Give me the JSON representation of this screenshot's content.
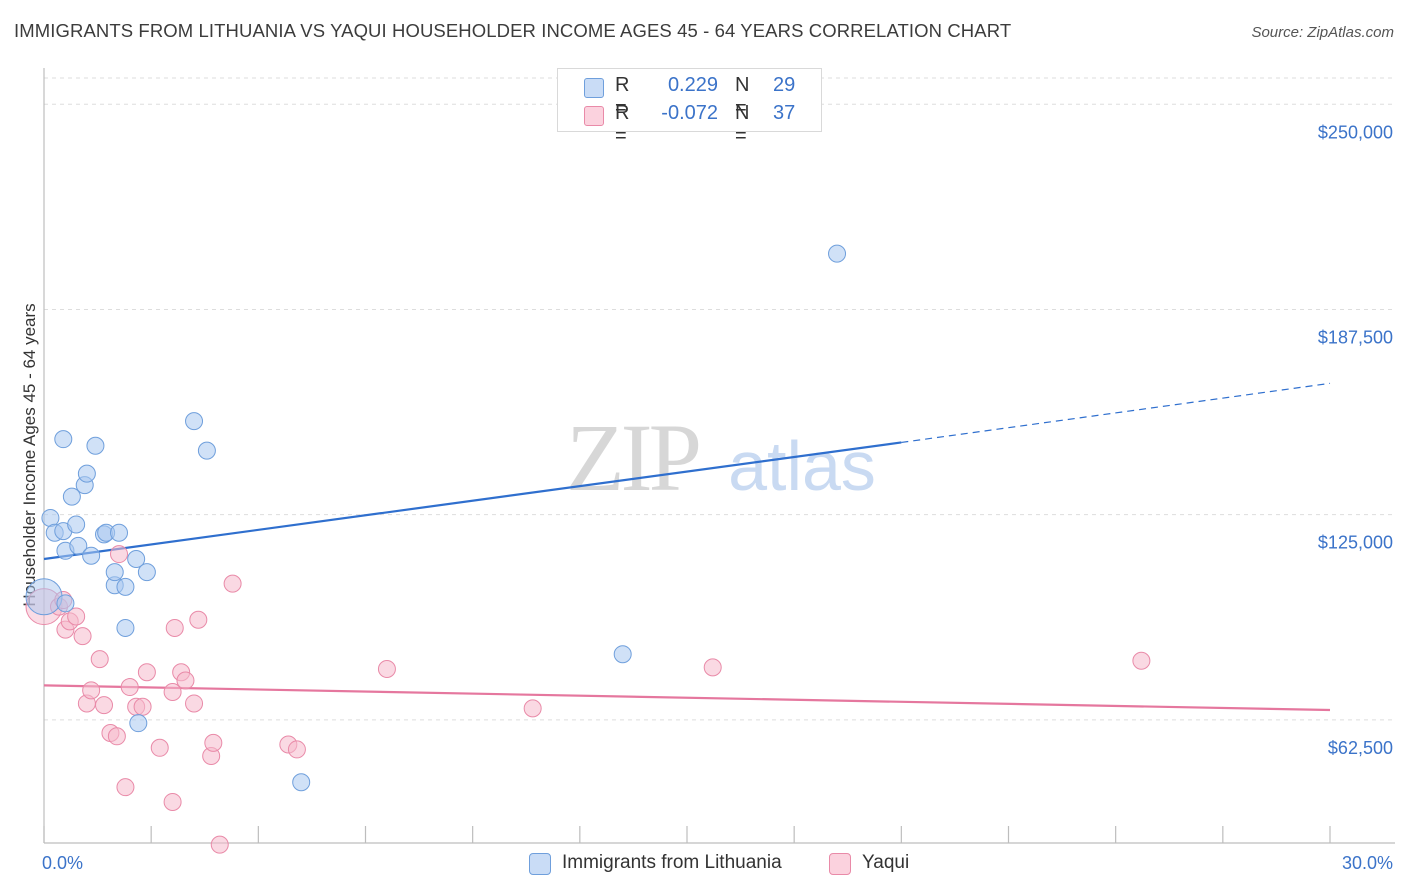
{
  "title": "IMMIGRANTS FROM LITHUANIA VS YAQUI HOUSEHOLDER INCOME AGES 45 - 64 YEARS CORRELATION CHART",
  "source": "Source: ZipAtlas.com",
  "watermark": {
    "zip": "ZIP",
    "atlas": "atlas"
  },
  "stats": {
    "r_label": "R =",
    "n_label": "N =",
    "rows": [
      {
        "series": "Immigrants from Lithuania",
        "r": "0.229",
        "n": "29",
        "color": "#a9c8f0"
      },
      {
        "series": "Yaqui",
        "r": "-0.072",
        "n": "37",
        "color": "#f5b9cc"
      }
    ]
  },
  "legend": [
    {
      "label": "Immigrants from Lithuania",
      "color": "#a9c8f0"
    },
    {
      "label": "Yaqui",
      "color": "#f5b9cc"
    }
  ],
  "colors": {
    "blue_fill": "#a9c8f0",
    "blue_stroke": "#6f9fdc",
    "blue_line": "#2f6fce",
    "pink_fill": "#f5b9cc",
    "pink_stroke": "#e98aa8",
    "pink_line": "#e5779e",
    "axis_label": "#3b73c9",
    "grid": "#dddddd"
  },
  "chart_data": {
    "type": "scatter",
    "title": "IMMIGRANTS FROM LITHUANIA VS YAQUI HOUSEHOLDER INCOME AGES 45 - 64 YEARS CORRELATION CHART",
    "xlabel": "",
    "ylabel": "Householder Income Ages 45 - 64 years",
    "xlim": [
      0,
      30
    ],
    "ylim": [
      25000,
      258000
    ],
    "x_tick_labels": [
      "0.0%",
      "30.0%"
    ],
    "y_ticks": [
      62500,
      125000,
      187500,
      250000
    ],
    "y_tick_labels": [
      "$62,500",
      "$125,000",
      "$187,500",
      "$250,000"
    ],
    "grid": true,
    "legend_position": "bottom",
    "series": [
      {
        "name": "Immigrants from Lithuania",
        "points": [
          [
            0.0,
            100000
          ],
          [
            0.15,
            124000
          ],
          [
            0.25,
            119500
          ],
          [
            0.45,
            120000
          ],
          [
            0.5,
            98000
          ],
          [
            0.45,
            148000
          ],
          [
            0.5,
            114000
          ],
          [
            0.65,
            130500
          ],
          [
            0.75,
            122000
          ],
          [
            0.8,
            115500
          ],
          [
            0.95,
            134000
          ],
          [
            1.0,
            137500
          ],
          [
            1.1,
            112500
          ],
          [
            1.2,
            146000
          ],
          [
            1.4,
            119000
          ],
          [
            1.45,
            119500
          ],
          [
            1.65,
            103500
          ],
          [
            1.65,
            107500
          ],
          [
            1.75,
            119500
          ],
          [
            1.9,
            103000
          ],
          [
            1.9,
            90500
          ],
          [
            2.15,
            111500
          ],
          [
            2.2,
            61500
          ],
          [
            2.4,
            107500
          ],
          [
            3.5,
            153500
          ],
          [
            3.8,
            144500
          ],
          [
            6.0,
            43500
          ],
          [
            13.5,
            82500
          ],
          [
            18.5,
            204500
          ]
        ],
        "trend": {
          "x_start": 0,
          "y_start": 111500,
          "x_solid_end": 20,
          "y_solid_end": 147000,
          "x_end": 30,
          "y_end": 165000
        }
      },
      {
        "name": "Yaqui",
        "points": [
          [
            0.0,
            97000
          ],
          [
            0.35,
            97000
          ],
          [
            0.45,
            99000
          ],
          [
            0.5,
            90000
          ],
          [
            0.6,
            92500
          ],
          [
            0.75,
            94000
          ],
          [
            0.9,
            88000
          ],
          [
            1.0,
            67500
          ],
          [
            1.1,
            71500
          ],
          [
            1.3,
            81000
          ],
          [
            1.4,
            67000
          ],
          [
            1.55,
            58500
          ],
          [
            1.7,
            57500
          ],
          [
            1.75,
            113000
          ],
          [
            1.9,
            42000
          ],
          [
            2.0,
            72500
          ],
          [
            2.15,
            66500
          ],
          [
            2.3,
            66500
          ],
          [
            2.4,
            77000
          ],
          [
            2.7,
            54000
          ],
          [
            3.0,
            71000
          ],
          [
            3.0,
            37500
          ],
          [
            3.05,
            90500
          ],
          [
            3.2,
            77000
          ],
          [
            3.3,
            74500
          ],
          [
            3.5,
            67500
          ],
          [
            3.6,
            93000
          ],
          [
            3.9,
            51500
          ],
          [
            3.95,
            55500
          ],
          [
            4.1,
            24500
          ],
          [
            4.4,
            104000
          ],
          [
            5.7,
            55000
          ],
          [
            5.9,
            53500
          ],
          [
            8.0,
            78000
          ],
          [
            11.4,
            66000
          ],
          [
            15.6,
            78500
          ],
          [
            25.6,
            80500
          ]
        ],
        "trend": {
          "x_start": 0,
          "y_start": 73000,
          "x_end": 30,
          "y_end": 65500
        }
      }
    ]
  }
}
